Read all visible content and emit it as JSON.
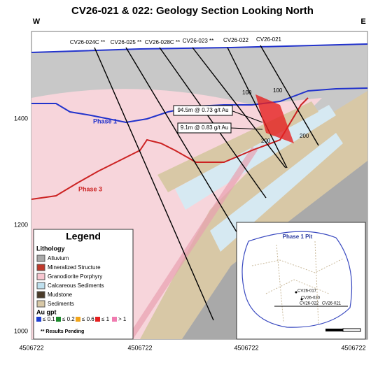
{
  "header": {
    "title": "CV26-021 & 022: Geology Section Looking North",
    "west": "W",
    "east": "E"
  },
  "axes": {
    "y_labels": [
      1400,
      1200,
      1000
    ],
    "x_labels": [
      4506722,
      4506722,
      4506722,
      4506722
    ]
  },
  "drill_holes": [
    "CV26-024C **",
    "CV26-025 **",
    "CV26-028C **",
    "CV26-023 **",
    "CV26-022",
    "CV26-021"
  ],
  "depth_labels": [
    "100",
    "100",
    "200",
    "200"
  ],
  "intercepts": [
    "94.5m @ 0.73 g/t Au",
    "9.1m @ 0.83 g/t Au"
  ],
  "pit_labels": [
    "Phase 1",
    "Phase 3"
  ],
  "legend": {
    "title": "Legend",
    "lithology_title": "Lithology",
    "lithology": [
      "Alluvium",
      "Mineralized Structure",
      "Granodiorite Porphyry",
      "Calcareous Sediments",
      "Mudstone",
      "Sediments"
    ],
    "au_title": "Au gpt",
    "au_classes": [
      "≤ 0.1",
      "≤ 0.2",
      "≤ 0.6",
      "≤ 1",
      "> 1"
    ],
    "note": "** Results Pending"
  },
  "inset": {
    "title": "Phase 1 Pit",
    "holes": [
      "CV26-017",
      "CV26-020",
      "CV26-022",
      "CV26-021"
    ]
  }
}
